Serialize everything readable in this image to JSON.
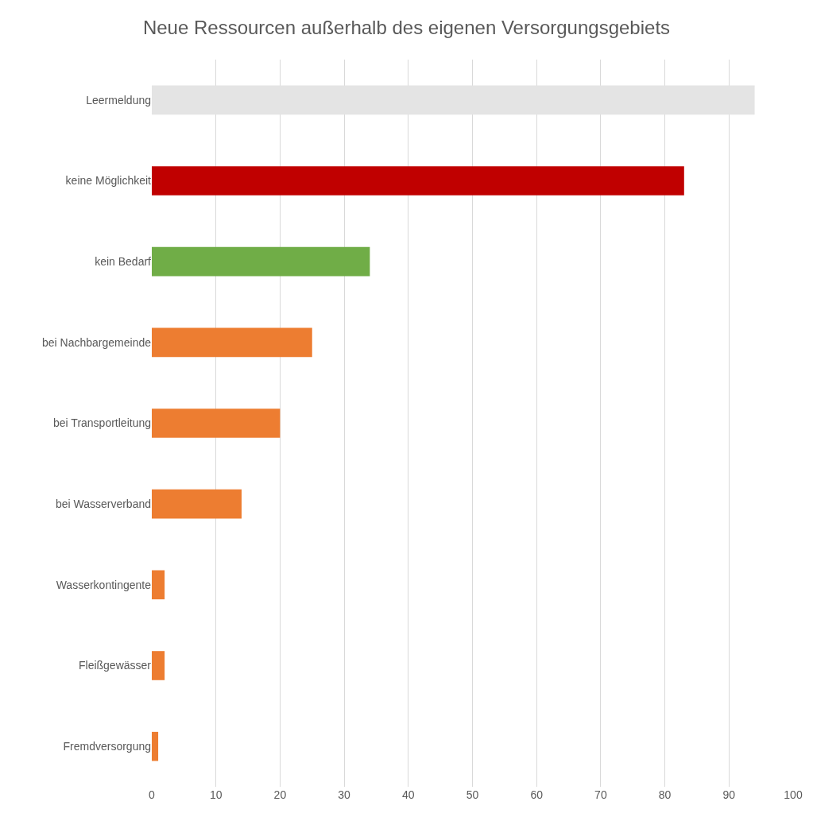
{
  "chart_data": {
    "type": "bar",
    "orientation": "horizontal",
    "title": "Neue Ressourcen außerhalb des eigenen Versorgungsgebiets",
    "categories": [
      "Leermeldung",
      "keine Möglichkeit",
      "kein Bedarf",
      "bei Nachbargemeinde",
      "bei Transportleitung",
      "bei Wasserverband",
      "Wasserkontingente",
      "Fleißgewässer",
      "Fremdversorgung"
    ],
    "values": [
      94,
      83,
      34,
      25,
      20,
      14,
      2,
      2,
      1
    ],
    "colors": [
      "#e4e4e4",
      "#c00000",
      "#70ad47",
      "#ed7d31",
      "#ed7d31",
      "#ed7d31",
      "#ed7d31",
      "#ed7d31",
      "#ed7d31"
    ],
    "xlim": [
      0,
      100
    ],
    "xticks": [
      0,
      10,
      20,
      30,
      40,
      50,
      60,
      70,
      80,
      90,
      100
    ],
    "grid": "x"
  }
}
